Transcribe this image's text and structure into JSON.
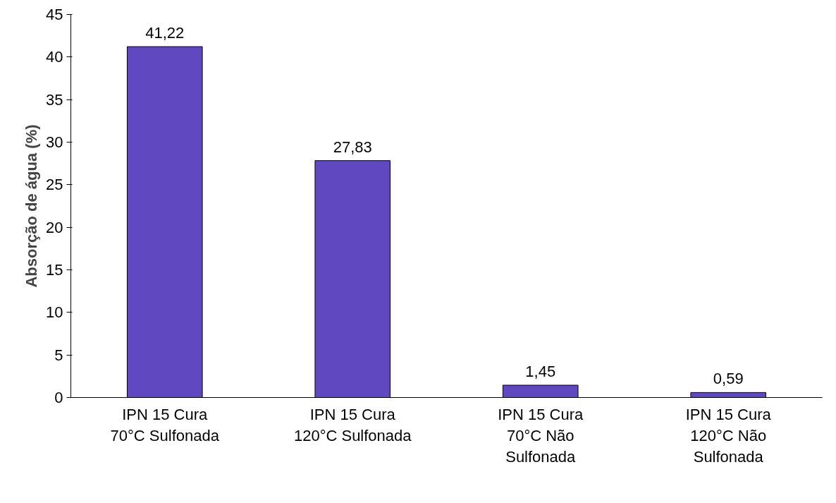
{
  "chart_data": {
    "type": "bar",
    "ylabel": "Absorção de água (%)",
    "categories": [
      "IPN 15 Cura 70°C Sulfonada",
      "IPN 15 Cura 120°C Sulfonada",
      "IPN 15 Cura 70°C Não Sulfonada",
      "IPN 15 Cura 120°C Não Sulfonada"
    ],
    "values": [
      41.22,
      27.83,
      1.45,
      0.59
    ],
    "value_labels": [
      "41,22",
      "27,83",
      "1,45",
      "0,59"
    ],
    "color": "#6048c0",
    "ylim": [
      0,
      45
    ],
    "yticks": [
      0,
      5,
      10,
      15,
      20,
      25,
      30,
      35,
      40,
      45
    ],
    "grid": false
  }
}
